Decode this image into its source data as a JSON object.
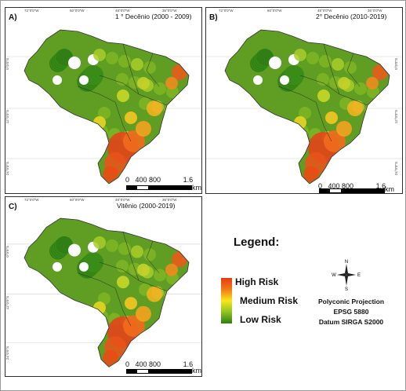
{
  "maps": [
    {
      "label": "A)",
      "title": "1 ° Decênio (2000 - 2009)",
      "lon_ticks": [
        "72°0'0\"W",
        "60°0'0\"W",
        "48°0'0\"W",
        "36°0'0\"W"
      ],
      "lat_ticks": [
        "0°0'0\"S",
        "12°0'0\"S",
        "24°0'0\"S"
      ],
      "scale_labels": [
        "0",
        "400 800",
        "1.6"
      ],
      "scale_unit": "km"
    },
    {
      "label": "B)",
      "title": "2° Decênio (2010-2019)",
      "lon_ticks": [
        "72°0'0\"W",
        "60°0'0\"W",
        "48°0'0\"W",
        "36°0'0\"W"
      ],
      "lat_ticks": [
        "0°0'0\"S",
        "12°0'0\"S",
        "24°0'0\"S"
      ],
      "scale_labels": [
        "0",
        "400 800",
        "1.6"
      ],
      "scale_unit": "km"
    },
    {
      "label": "C)",
      "title": "Vitênio (2000-2019)",
      "lon_ticks": [
        "72°0'0\"W",
        "60°0'0\"W",
        "48°0'0\"W",
        "36°0'0\"W"
      ],
      "lat_ticks": [
        "0°0'0\"S",
        "12°0'0\"S",
        "24°0'0\"S"
      ],
      "scale_labels": [
        "0",
        "400 800",
        "1.6"
      ],
      "scale_unit": "km"
    }
  ],
  "legend": {
    "title": "Legend:",
    "high": "High Risk",
    "medium": "Medium Risk",
    "low": "Low Risk",
    "colors": {
      "high": "#e83a14",
      "medium": "#f9e619",
      "low": "#2f7f14"
    }
  },
  "compass": {
    "n": "N",
    "s": "S",
    "e": "E",
    "w": "W"
  },
  "projection": {
    "line1": "Polyconic Projection",
    "line2": "EPSG  5880",
    "line3": "Datum SIRGA  S2000"
  }
}
